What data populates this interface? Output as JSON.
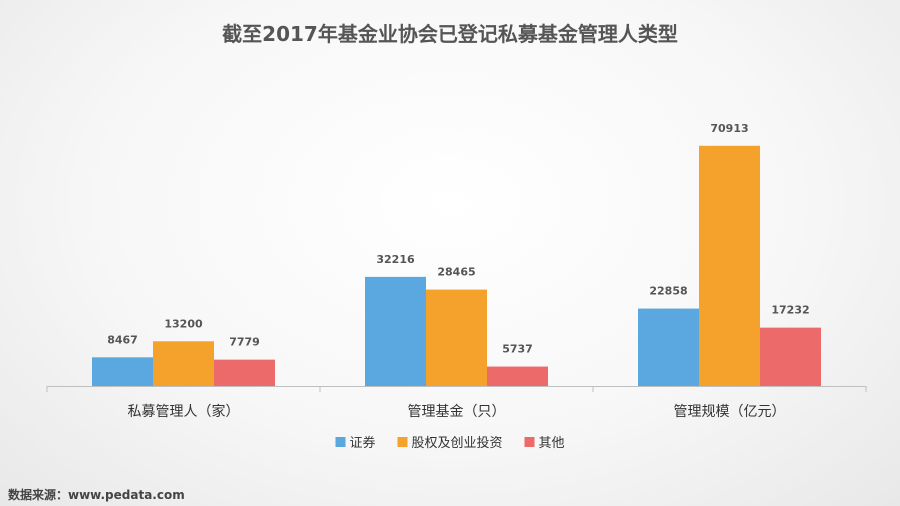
{
  "chart_data": {
    "type": "bar",
    "title": "截至2017年基金业协会已登记私募基金管理人类型",
    "categories": [
      "私募管理人（家）",
      "管理基金（只）",
      "管理规模（亿元）"
    ],
    "series": [
      {
        "name": "证券",
        "values": [
          8467,
          32216,
          22858
        ],
        "color": "#5BA7E0"
      },
      {
        "name": "股权及创业投资",
        "values": [
          13200,
          28465,
          70913
        ],
        "color": "#F5A22D"
      },
      {
        "name": "其他",
        "values": [
          7779,
          5737,
          17232
        ],
        "color": "#EC6A6A"
      }
    ],
    "ylim": [
      0,
      80000
    ],
    "grid": false,
    "legend_position": "bottom"
  },
  "source_text": "数据来源：www.pedata.com"
}
